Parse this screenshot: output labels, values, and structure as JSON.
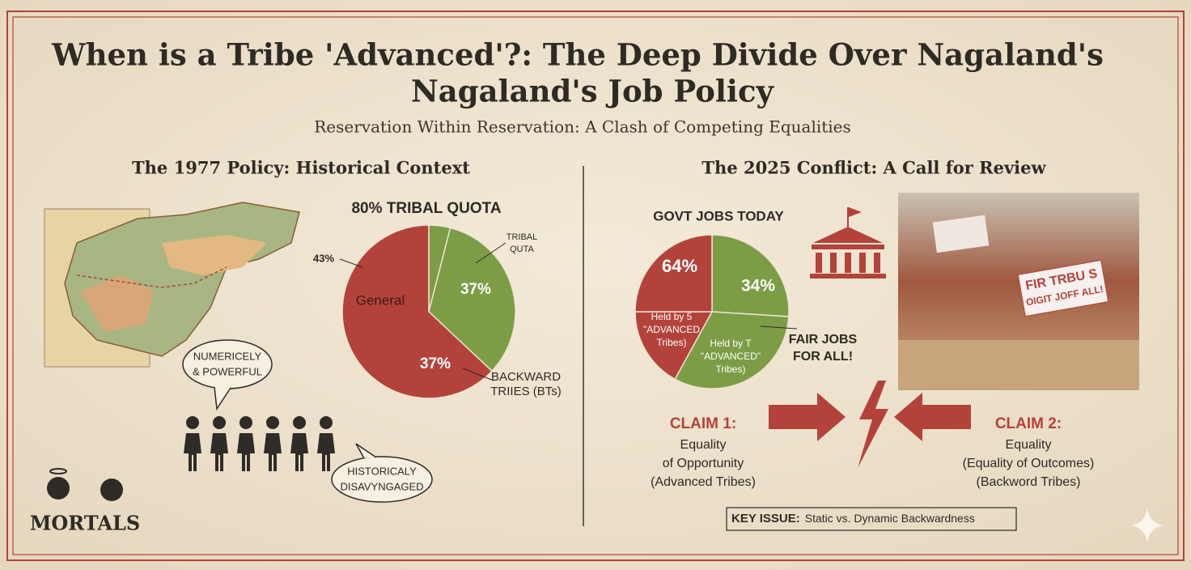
{
  "header": {
    "title_lines": [
      "When is a Tribe 'Advanced'?: The Deep Divide Over Nagaland's",
      "Nagaland's Job Policy"
    ],
    "subtitle": "Reservation Within Reservation: A Clash of Competing Equalities"
  },
  "left": {
    "heading": "The 1977 Policy: Historical Context",
    "pie": {
      "type": "pie",
      "title": "80% TRIBAL QUOTA",
      "slices": [
        {
          "value": 4,
          "color": "#7d9c46"
        },
        {
          "value": 33,
          "color": "#7d9c46"
        },
        {
          "value": 63,
          "color": "#b3433a"
        }
      ],
      "labels": [
        "43%",
        "General",
        "37%",
        "37%",
        "TRIBAL",
        "QUTA",
        "BACKWARD",
        "TRIIES (BTs)"
      ]
    },
    "bubbles": [
      [
        "NUMERICELY",
        "& POWERFUL"
      ],
      [
        "HISTORICALY",
        "DISAVYNGAGED"
      ]
    ],
    "logo": "MORTALS"
  },
  "right": {
    "heading": "The 2025 Conflict: A Call for Review",
    "pie": {
      "type": "pie",
      "title": "GOVT JOBS TODAY",
      "slices": [
        {
          "value": 26,
          "color": "#7d9c46"
        },
        {
          "value": 32,
          "color": "#7d9c46"
        },
        {
          "value": 17,
          "color": "#b3433a"
        },
        {
          "value": 25,
          "color": "#b3433a"
        }
      ],
      "labels": [
        "64%",
        "34%",
        "Held by 5",
        "\"ADVANCED",
        "Tribes)",
        "Held by T",
        "\"ADVANCED\"",
        "Tribes)",
        "FAIR JOBS",
        "FOR ALL!"
      ]
    },
    "sign": [
      "FIR TRBU S",
      "OIGIT JOFF ALL!"
    ],
    "claims": [
      {
        "title": "CLAIM 1:",
        "lines": [
          "Equality",
          "of Opportunity",
          "(Advanced Tribes)"
        ]
      },
      {
        "title": "CLAIM 2:",
        "lines": [
          "Equality",
          "(Equality of Outcomes)",
          "(Backword Tribes)"
        ]
      }
    ],
    "key_issue": {
      "label": "KEY ISSUE:",
      "text": "Static vs. Dynamic Backwardness"
    }
  }
}
